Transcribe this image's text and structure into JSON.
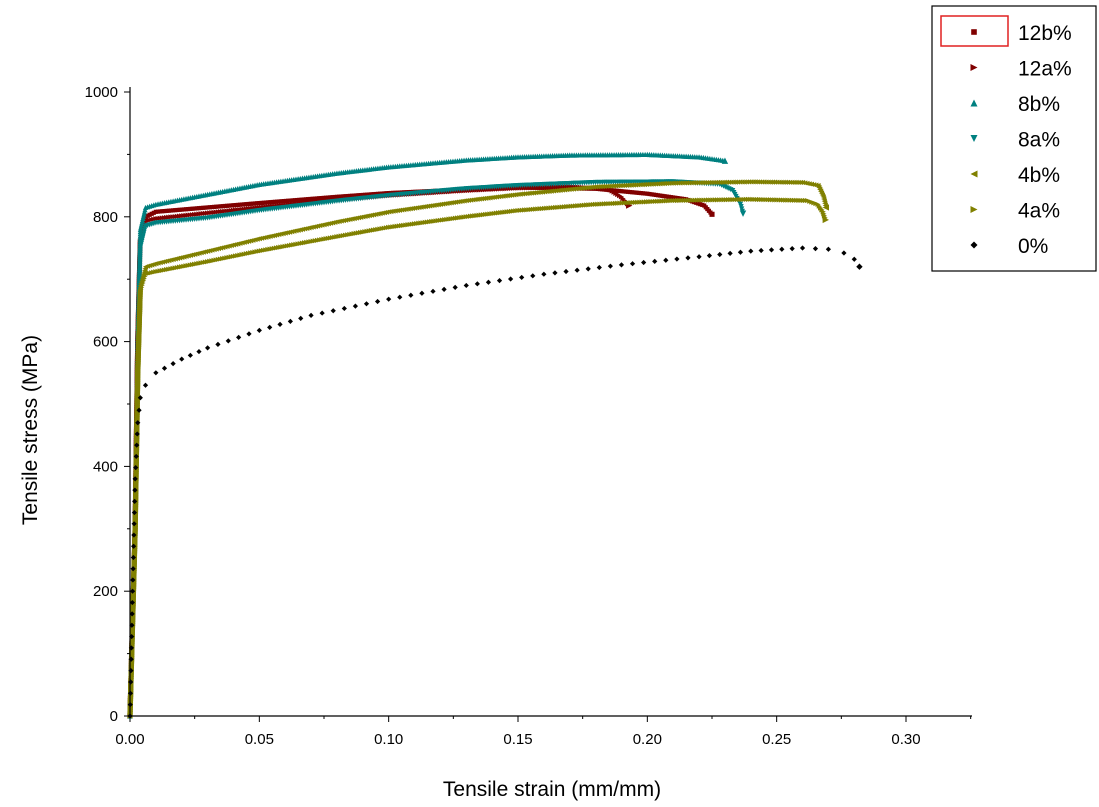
{
  "chart_data": {
    "type": "scatter",
    "title": "",
    "xlabel": "Tensile strain (mm/mm)",
    "ylabel": "Tensile stress (MPa)",
    "xlim": [
      0,
      0.325
    ],
    "ylim": [
      0,
      1000
    ],
    "x_ticks": [
      "0.00",
      "0.05",
      "0.10",
      "0.15",
      "0.20",
      "0.25",
      "0.30"
    ],
    "y_ticks": [
      "0",
      "200",
      "400",
      "600",
      "800",
      "1000"
    ],
    "legend_position": "top-right",
    "series": [
      {
        "name": "12b%",
        "color": "#800000",
        "marker": "square",
        "points": [
          [
            0,
            0
          ],
          [
            0.002,
            300
          ],
          [
            0.003,
            600
          ],
          [
            0.004,
            760
          ],
          [
            0.006,
            800
          ],
          [
            0.01,
            808
          ],
          [
            0.03,
            815
          ],
          [
            0.05,
            822
          ],
          [
            0.08,
            832
          ],
          [
            0.1,
            838
          ],
          [
            0.13,
            844
          ],
          [
            0.15,
            847
          ],
          [
            0.18,
            845
          ],
          [
            0.2,
            837
          ],
          [
            0.215,
            828
          ],
          [
            0.222,
            818
          ],
          [
            0.225,
            804
          ]
        ]
      },
      {
        "name": "12a%",
        "color": "#800000",
        "marker": "triangle-right",
        "points": [
          [
            0,
            0
          ],
          [
            0.002,
            300
          ],
          [
            0.003,
            600
          ],
          [
            0.004,
            760
          ],
          [
            0.006,
            793
          ],
          [
            0.01,
            797
          ],
          [
            0.03,
            806
          ],
          [
            0.05,
            815
          ],
          [
            0.08,
            827
          ],
          [
            0.1,
            834
          ],
          [
            0.13,
            842
          ],
          [
            0.15,
            846
          ],
          [
            0.17,
            848
          ],
          [
            0.185,
            845
          ],
          [
            0.19,
            832
          ],
          [
            0.193,
            818
          ]
        ]
      },
      {
        "name": "8b%",
        "color": "#008080",
        "marker": "triangle-up",
        "points": [
          [
            0,
            0
          ],
          [
            0.002,
            300
          ],
          [
            0.003,
            600
          ],
          [
            0.004,
            780
          ],
          [
            0.006,
            815
          ],
          [
            0.01,
            820
          ],
          [
            0.03,
            836
          ],
          [
            0.05,
            852
          ],
          [
            0.08,
            870
          ],
          [
            0.1,
            880
          ],
          [
            0.13,
            891
          ],
          [
            0.15,
            896
          ],
          [
            0.17,
            899
          ],
          [
            0.2,
            900
          ],
          [
            0.22,
            896
          ],
          [
            0.23,
            890
          ]
        ]
      },
      {
        "name": "8a%",
        "color": "#008080",
        "marker": "triangle-down",
        "points": [
          [
            0,
            0
          ],
          [
            0.002,
            300
          ],
          [
            0.003,
            600
          ],
          [
            0.004,
            750
          ],
          [
            0.006,
            785
          ],
          [
            0.01,
            790
          ],
          [
            0.03,
            798
          ],
          [
            0.05,
            810
          ],
          [
            0.08,
            825
          ],
          [
            0.1,
            834
          ],
          [
            0.13,
            845
          ],
          [
            0.15,
            850
          ],
          [
            0.18,
            855
          ],
          [
            0.21,
            856
          ],
          [
            0.228,
            852
          ],
          [
            0.233,
            842
          ],
          [
            0.236,
            820
          ],
          [
            0.237,
            805
          ]
        ]
      },
      {
        "name": "4b%",
        "color": "#808000",
        "marker": "triangle-left",
        "points": [
          [
            0,
            0
          ],
          [
            0.002,
            300
          ],
          [
            0.003,
            550
          ],
          [
            0.004,
            690
          ],
          [
            0.006,
            720
          ],
          [
            0.01,
            725
          ],
          [
            0.03,
            745
          ],
          [
            0.05,
            765
          ],
          [
            0.08,
            792
          ],
          [
            0.1,
            808
          ],
          [
            0.13,
            826
          ],
          [
            0.15,
            836
          ],
          [
            0.18,
            848
          ],
          [
            0.21,
            854
          ],
          [
            0.24,
            856
          ],
          [
            0.26,
            855
          ],
          [
            0.266,
            850
          ],
          [
            0.268,
            832
          ],
          [
            0.269,
            815
          ]
        ]
      },
      {
        "name": "4a%",
        "color": "#808000",
        "marker": "triangle-right",
        "points": [
          [
            0,
            0
          ],
          [
            0.002,
            300
          ],
          [
            0.003,
            550
          ],
          [
            0.004,
            680
          ],
          [
            0.006,
            708
          ],
          [
            0.01,
            712
          ],
          [
            0.03,
            728
          ],
          [
            0.05,
            745
          ],
          [
            0.08,
            768
          ],
          [
            0.1,
            783
          ],
          [
            0.13,
            800
          ],
          [
            0.15,
            810
          ],
          [
            0.18,
            820
          ],
          [
            0.21,
            826
          ],
          [
            0.24,
            828
          ],
          [
            0.262,
            826
          ],
          [
            0.266,
            820
          ],
          [
            0.268,
            808
          ],
          [
            0.269,
            795
          ]
        ]
      },
      {
        "name": "0%",
        "color": "#000000",
        "marker": "diamond",
        "points": [
          [
            0,
            0
          ],
          [
            0.001,
            200
          ],
          [
            0.002,
            380
          ],
          [
            0.003,
            470
          ],
          [
            0.004,
            510
          ],
          [
            0.006,
            530
          ],
          [
            0.01,
            550
          ],
          [
            0.02,
            572
          ],
          [
            0.03,
            590
          ],
          [
            0.05,
            618
          ],
          [
            0.07,
            642
          ],
          [
            0.1,
            668
          ],
          [
            0.13,
            690
          ],
          [
            0.16,
            708
          ],
          [
            0.19,
            723
          ],
          [
            0.22,
            736
          ],
          [
            0.24,
            745
          ],
          [
            0.26,
            750
          ],
          [
            0.27,
            748
          ],
          [
            0.276,
            742
          ],
          [
            0.28,
            732
          ],
          [
            0.282,
            720
          ]
        ]
      }
    ]
  }
}
